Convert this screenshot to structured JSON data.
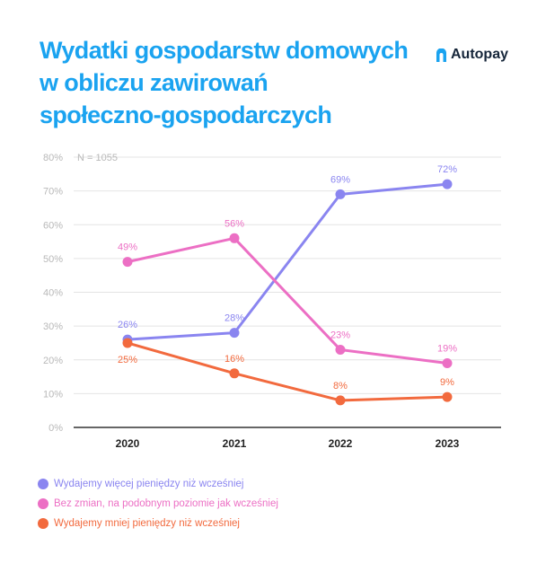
{
  "title_lines": [
    "Wydatki gospodarstw domowych",
    "w obliczu zawirowań",
    "społeczno-gospodarczych"
  ],
  "brand": {
    "name": "Autopay",
    "icon": "autopay-logo-icon"
  },
  "colors": {
    "title": "#1aa3f0",
    "grid": "#e4e4e4",
    "axis": "#333333",
    "tick": "#b8b8b8"
  },
  "chart_data": {
    "type": "line",
    "annotation": "N = 1055",
    "x": [
      "2020",
      "2021",
      "2022",
      "2023"
    ],
    "ylim": [
      0,
      80
    ],
    "yticks": [
      "0%",
      "10%",
      "20%",
      "30%",
      "40%",
      "50%",
      "60%",
      "70%",
      "80%"
    ],
    "grid": true,
    "legend_placement": "bottom-left",
    "series": [
      {
        "name": "Wydajemy więcej pieniędzy niż wcześniej",
        "values": [
          26,
          28,
          69,
          72
        ],
        "labels": [
          "26%",
          "28%",
          "69%",
          "72%"
        ],
        "color": "#8a85f0",
        "label_position": "above"
      },
      {
        "name": "Bez zmian, na podobnym poziomie jak wcześniej",
        "values": [
          49,
          56,
          23,
          19
        ],
        "labels": [
          "49%",
          "56%",
          "23%",
          "19%"
        ],
        "color": "#ec6fc4",
        "label_position": "above"
      },
      {
        "name": "Wydajemy mniej pieniędzy niż wcześniej",
        "values": [
          25,
          16,
          8,
          9
        ],
        "labels": [
          "25%",
          "16%",
          "8%",
          "9%"
        ],
        "color": "#f26a3e",
        "label_position": "mixed"
      }
    ]
  }
}
